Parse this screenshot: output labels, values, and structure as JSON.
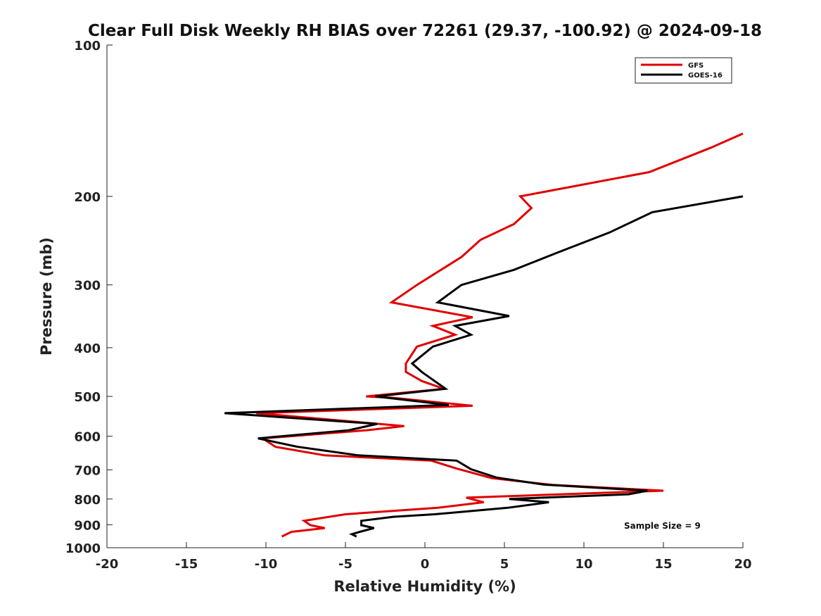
{
  "chart_data": {
    "type": "line",
    "title": "Clear Full Disk Weekly RH BIAS over 72261 (29.37, -100.92) @ 2024-09-18",
    "xlabel": "Relative Humidity (%)",
    "ylabel": "Pressure (mb)",
    "xlim": [
      -20,
      20
    ],
    "ylim": [
      1000,
      100
    ],
    "y_scale": "log",
    "x_ticks": [
      "-20",
      "-15",
      "-10",
      "-5",
      "0",
      "5",
      "10",
      "15",
      "20"
    ],
    "y_ticks": [
      "100",
      "200",
      "300",
      "400",
      "500",
      "600",
      "700",
      "800",
      "900",
      "1000"
    ],
    "grid": false,
    "legend_position": "top-right",
    "annotation": "Sample Size = 9",
    "series": [
      {
        "name": "GFS",
        "color": "#e00000",
        "points": [
          [
            20,
            150
          ],
          [
            18,
            160
          ],
          [
            14.1,
            179
          ],
          [
            6,
            200
          ],
          [
            6.7,
            211
          ],
          [
            5.6,
            227
          ],
          [
            3.5,
            244
          ],
          [
            2.3,
            264
          ],
          [
            -0.5,
            300
          ],
          [
            -2.1,
            325
          ],
          [
            3,
            348
          ],
          [
            0.5,
            362
          ],
          [
            1.9,
            377
          ],
          [
            -0.5,
            398
          ],
          [
            -1.2,
            430
          ],
          [
            -1.2,
            447
          ],
          [
            -0.2,
            466
          ],
          [
            1.2,
            483
          ],
          [
            -3.7,
            500
          ],
          [
            -2.1,
            503
          ],
          [
            3,
            522
          ],
          [
            -10.6,
            540
          ],
          [
            -1.3,
            573
          ],
          [
            -3.7,
            584
          ],
          [
            -10.2,
            606
          ],
          [
            -9.4,
            630
          ],
          [
            -6.3,
            655
          ],
          [
            0.4,
            671
          ],
          [
            2,
            696
          ],
          [
            4.2,
            727
          ],
          [
            8,
            750
          ],
          [
            15,
            770
          ],
          [
            2.6,
            795
          ],
          [
            3.7,
            812
          ],
          [
            0.8,
            833
          ],
          [
            -5,
            858
          ],
          [
            -7.6,
            884
          ],
          [
            -7.2,
            902
          ],
          [
            -6.3,
            914
          ],
          [
            -8.4,
            930
          ],
          [
            -9,
            950
          ]
        ]
      },
      {
        "name": "GOES-16",
        "color": "#000000",
        "points": [
          [
            20,
            200
          ],
          [
            19.6,
            201
          ],
          [
            14.3,
            215
          ],
          [
            11.6,
            236
          ],
          [
            8.3,
            259
          ],
          [
            5.6,
            280
          ],
          [
            2.3,
            300
          ],
          [
            0.8,
            325
          ],
          [
            5.3,
            346
          ],
          [
            1.9,
            362
          ],
          [
            2.9,
            377
          ],
          [
            0.5,
            398
          ],
          [
            -0.8,
            430
          ],
          [
            -0.2,
            447
          ],
          [
            1.3,
            483
          ],
          [
            -3.1,
            500
          ],
          [
            1.5,
            520
          ],
          [
            -12.6,
            540
          ],
          [
            -3,
            567
          ],
          [
            -4.8,
            584
          ],
          [
            -10.5,
            606
          ],
          [
            -8,
            630
          ],
          [
            -4.2,
            655
          ],
          [
            2,
            671
          ],
          [
            2.9,
            698
          ],
          [
            4.5,
            725
          ],
          [
            7.5,
            749
          ],
          [
            14,
            770
          ],
          [
            12.8,
            783
          ],
          [
            5.3,
            800
          ],
          [
            7.8,
            812
          ],
          [
            5.2,
            833
          ],
          [
            0.6,
            858
          ],
          [
            -2,
            868
          ],
          [
            -4,
            884
          ],
          [
            -4,
            902
          ],
          [
            -3.2,
            914
          ],
          [
            -4.1,
            930
          ],
          [
            -4.6,
            940
          ],
          [
            -4.3,
            950
          ]
        ]
      }
    ]
  }
}
